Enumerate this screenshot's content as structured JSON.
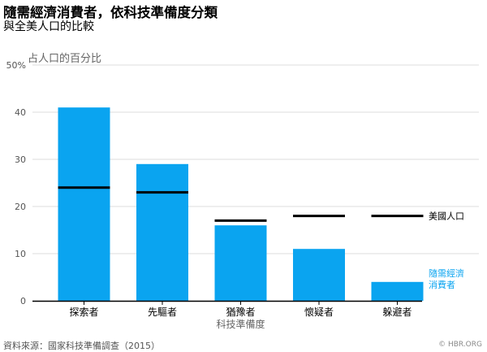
{
  "title": "隨需經濟消費者，依科技準備度分類",
  "subtitle": "與全美人口的比較",
  "source": "資料來源：國家科技準備調查（2015）",
  "credit": "© HBR.ORG",
  "colors": {
    "bar": "#0aa4f0",
    "reference": "#000000",
    "grid": "#dddddd",
    "axis": "#000000"
  },
  "chart_data": {
    "type": "bar",
    "unit_label": "占人口的百分比",
    "xlabel": "科技準備度",
    "ylabel": "",
    "ylim": [
      0,
      50
    ],
    "yticks": [
      {
        "value": 0,
        "label": "0"
      },
      {
        "value": 10,
        "label": "10"
      },
      {
        "value": 20,
        "label": "20"
      },
      {
        "value": 30,
        "label": "30"
      },
      {
        "value": 40,
        "label": "40"
      },
      {
        "value": 50,
        "label": "50%"
      }
    ],
    "grid": true,
    "categories": [
      "探索者",
      "先驅者",
      "猶豫者",
      "懷疑者",
      "躲避者"
    ],
    "series": [
      {
        "name": "隨需經濟消費者",
        "type": "bar",
        "values": [
          41,
          29,
          16,
          11,
          4
        ]
      },
      {
        "name": "美國人口",
        "type": "reference",
        "values": [
          24,
          23,
          17,
          18,
          18
        ]
      }
    ],
    "legend": {
      "placement": "right",
      "reference_label": "美國人口",
      "bar_label_lines": [
        "隨需經濟",
        "消費者"
      ]
    }
  }
}
